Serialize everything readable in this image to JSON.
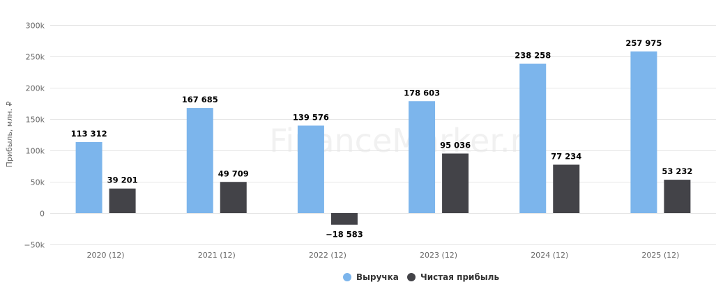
{
  "watermark": "FinanceMarker.ru",
  "chart_data": {
    "type": "bar",
    "ylabel": "Прибыль, млн. ₽",
    "ylim": [
      -50000,
      300000
    ],
    "yticks": [
      -50000,
      0,
      50000,
      100000,
      150000,
      200000,
      250000,
      300000
    ],
    "ytick_labels": [
      "−50k",
      "0",
      "50k",
      "100k",
      "150k",
      "200k",
      "250k",
      "300k"
    ],
    "categories": [
      "2020 (12)",
      "2021 (12)",
      "2022 (12)",
      "2023 (12)",
      "2024 (12)",
      "2025 (12)"
    ],
    "series": [
      {
        "name": "Выручка",
        "color": "#7cb5ec",
        "values": [
          113312,
          167685,
          139576,
          178603,
          238258,
          257975
        ],
        "labels": [
          "113 312",
          "167 685",
          "139 576",
          "178 603",
          "238 258",
          "257 975"
        ]
      },
      {
        "name": "Чистая прибыль",
        "color": "#434348",
        "values": [
          39201,
          49709,
          -18583,
          95036,
          77234,
          53232
        ],
        "labels": [
          "39 201",
          "49 709",
          "−18 583",
          "95 036",
          "77 234",
          "53 232"
        ]
      }
    ],
    "grid": true,
    "legend_position": "bottom-center"
  }
}
